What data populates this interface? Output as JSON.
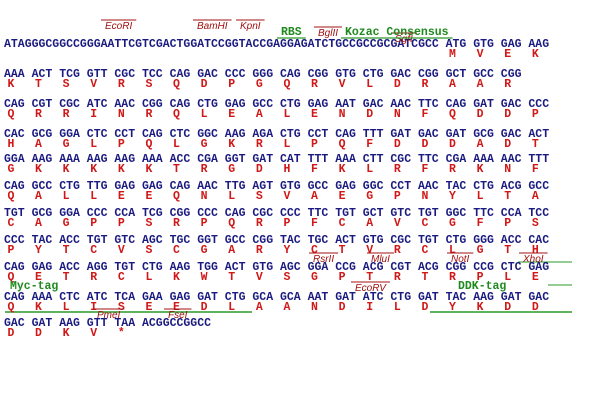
{
  "lines": [
    {
      "enzymes": [
        "EcoRI",
        "BamHI",
        "KpnI",
        "BglII",
        "SgfI"
      ],
      "features": [
        "RBS",
        "Kozac Consensus"
      ],
      "dna": [
        "ATAGGGCGGCCGGGAATTCGTCGACTGGATCCGGTACCGAGGAGATCTGCCGCCGCGATCGCC",
        "ATG",
        "GTG",
        "GAG",
        "AAG"
      ],
      "protein": [
        null,
        "M",
        "V",
        "E",
        "K"
      ]
    },
    {
      "enzymes": [],
      "features": [],
      "dna": [
        "AAA",
        "ACT",
        "TCG",
        "GTT",
        "CGC",
        "TCC",
        "CAG",
        "GAC",
        "CCC",
        "GGG",
        "CAG",
        "CGG",
        "GTG",
        "CTG",
        "GAC",
        "CGG",
        "GCT",
        "GCC",
        "CGG"
      ],
      "protein": [
        "K",
        "T",
        "S",
        "V",
        "R",
        "S",
        "Q",
        "D",
        "P",
        "G",
        "Q",
        "R",
        "V",
        "L",
        "D",
        "R",
        "A",
        "A",
        "R"
      ]
    },
    {
      "enzymes": [],
      "features": [],
      "dna": [
        "CAG",
        "CGT",
        "CGC",
        "ATC",
        "AAC",
        "CGG",
        "CAG",
        "CTG",
        "GAG",
        "GCC",
        "CTG",
        "GAG",
        "AAT",
        "GAC",
        "AAC",
        "TTC",
        "CAG",
        "GAT",
        "GAC",
        "CCC"
      ],
      "protein": [
        "Q",
        "R",
        "R",
        "I",
        "N",
        "R",
        "Q",
        "L",
        "E",
        "A",
        "L",
        "E",
        "N",
        "D",
        "N",
        "F",
        "Q",
        "D",
        "D",
        "P"
      ]
    },
    {
      "enzymes": [],
      "features": [],
      "dna": [
        "CAC",
        "GCG",
        "GGA",
        "CTC",
        "CCT",
        "CAG",
        "CTC",
        "GGC",
        "AAG",
        "AGA",
        "CTG",
        "CCT",
        "CAG",
        "TTT",
        "GAT",
        "GAC",
        "GAT",
        "GCG",
        "GAC",
        "ACT"
      ],
      "protein": [
        "H",
        "A",
        "G",
        "L",
        "P",
        "Q",
        "L",
        "G",
        "K",
        "R",
        "L",
        "P",
        "Q",
        "F",
        "D",
        "D",
        "D",
        "A",
        "D",
        "T"
      ]
    },
    {
      "enzymes": [],
      "features": [],
      "dna": [
        "GGA",
        "AAG",
        "AAA",
        "AAG",
        "AAG",
        "AAA",
        "ACC",
        "CGA",
        "GGT",
        "GAT",
        "CAT",
        "TTT",
        "AAA",
        "CTT",
        "CGC",
        "TTC",
        "CGA",
        "AAA",
        "AAC",
        "TTT"
      ],
      "protein": [
        "G",
        "K",
        "K",
        "K",
        "K",
        "K",
        "T",
        "R",
        "G",
        "D",
        "H",
        "F",
        "K",
        "L",
        "R",
        "F",
        "R",
        "K",
        "N",
        "F"
      ]
    },
    {
      "enzymes": [],
      "features": [],
      "dna": [
        "CAG",
        "GCC",
        "CTG",
        "TTG",
        "GAG",
        "GAG",
        "CAG",
        "AAC",
        "TTG",
        "AGT",
        "GTG",
        "GCC",
        "GAG",
        "GGC",
        "CCT",
        "AAC",
        "TAC",
        "CTG",
        "ACG",
        "GCC"
      ],
      "protein": [
        "Q",
        "A",
        "L",
        "L",
        "E",
        "E",
        "Q",
        "N",
        "L",
        "S",
        "V",
        "A",
        "E",
        "G",
        "P",
        "N",
        "Y",
        "L",
        "T",
        "A"
      ]
    },
    {
      "enzymes": [],
      "features": [],
      "dna": [
        "TGT",
        "GCG",
        "GGA",
        "CCC",
        "CCA",
        "TCG",
        "CGG",
        "CCC",
        "CAG",
        "CGC",
        "CCC",
        "TTC",
        "TGT",
        "GCT",
        "GTC",
        "TGT",
        "GGC",
        "TTC",
        "CCA",
        "TCC"
      ],
      "protein": [
        "C",
        "A",
        "G",
        "P",
        "P",
        "S",
        "R",
        "P",
        "Q",
        "R",
        "P",
        "F",
        "C",
        "A",
        "V",
        "C",
        "G",
        "F",
        "P",
        "S"
      ]
    },
    {
      "enzymes": [],
      "features": [],
      "dna": [
        "CCC",
        "TAC",
        "ACC",
        "TGT",
        "GTC",
        "AGC",
        "TGC",
        "GGT",
        "GCC",
        "CGG",
        "TAC",
        "TGC",
        "ACT",
        "GTG",
        "CGC",
        "TGT",
        "CTG",
        "GGG",
        "ACC",
        "CAC"
      ],
      "protein": [
        "P",
        "Y",
        "T",
        "C",
        "V",
        "S",
        "C",
        "G",
        "A",
        "R",
        "Y",
        "C",
        "T",
        "V",
        "R",
        "C",
        "L",
        "G",
        "T",
        "H"
      ]
    },
    {
      "enzymes": [
        "RsrII",
        "MluI",
        "NotI",
        "XhoI"
      ],
      "features": [],
      "dna": [
        "CAG",
        "GAG",
        "ACC",
        "AGG",
        "TGT",
        "CTG",
        "AAG",
        "TGG",
        "ACT",
        "GTG",
        "AGC",
        "GGA",
        "CCG",
        "ACG",
        "CGT",
        "ACG",
        "CGG",
        "CCG",
        "CTC",
        "GAG"
      ],
      "protein": [
        "Q",
        "E",
        "T",
        "R",
        "C",
        "L",
        "K",
        "W",
        "T",
        "V",
        "S",
        "G",
        "P",
        "T",
        "R",
        "T",
        "R",
        "P",
        "L",
        "E"
      ]
    },
    {
      "enzymes": [
        "EcoRV"
      ],
      "features": [
        "Myc-tag",
        "DDK-tag"
      ],
      "dna": [
        "CAG",
        "AAA",
        "CTC",
        "ATC",
        "TCA",
        "GAA",
        "GAG",
        "GAT",
        "CTG",
        "GCA",
        "GCA",
        "AAT",
        "GAT",
        "ATC",
        "CTG",
        "GAT",
        "TAC",
        "AAG",
        "GAT",
        "GAC"
      ],
      "protein": [
        "Q",
        "K",
        "L",
        "I",
        "S",
        "E",
        "E",
        "D",
        "L",
        "A",
        "A",
        "N",
        "D",
        "I",
        "L",
        "D",
        "Y",
        "K",
        "D",
        "D"
      ]
    },
    {
      "enzymes": [
        "PmeI",
        "FseI"
      ],
      "features": [],
      "dna": [
        "GAC",
        "GAT",
        "AAG",
        "GTT",
        "TAA",
        "ACGGCCGGCC"
      ],
      "protein": [
        "D",
        "D",
        "K",
        "V",
        "*",
        null
      ]
    }
  ]
}
